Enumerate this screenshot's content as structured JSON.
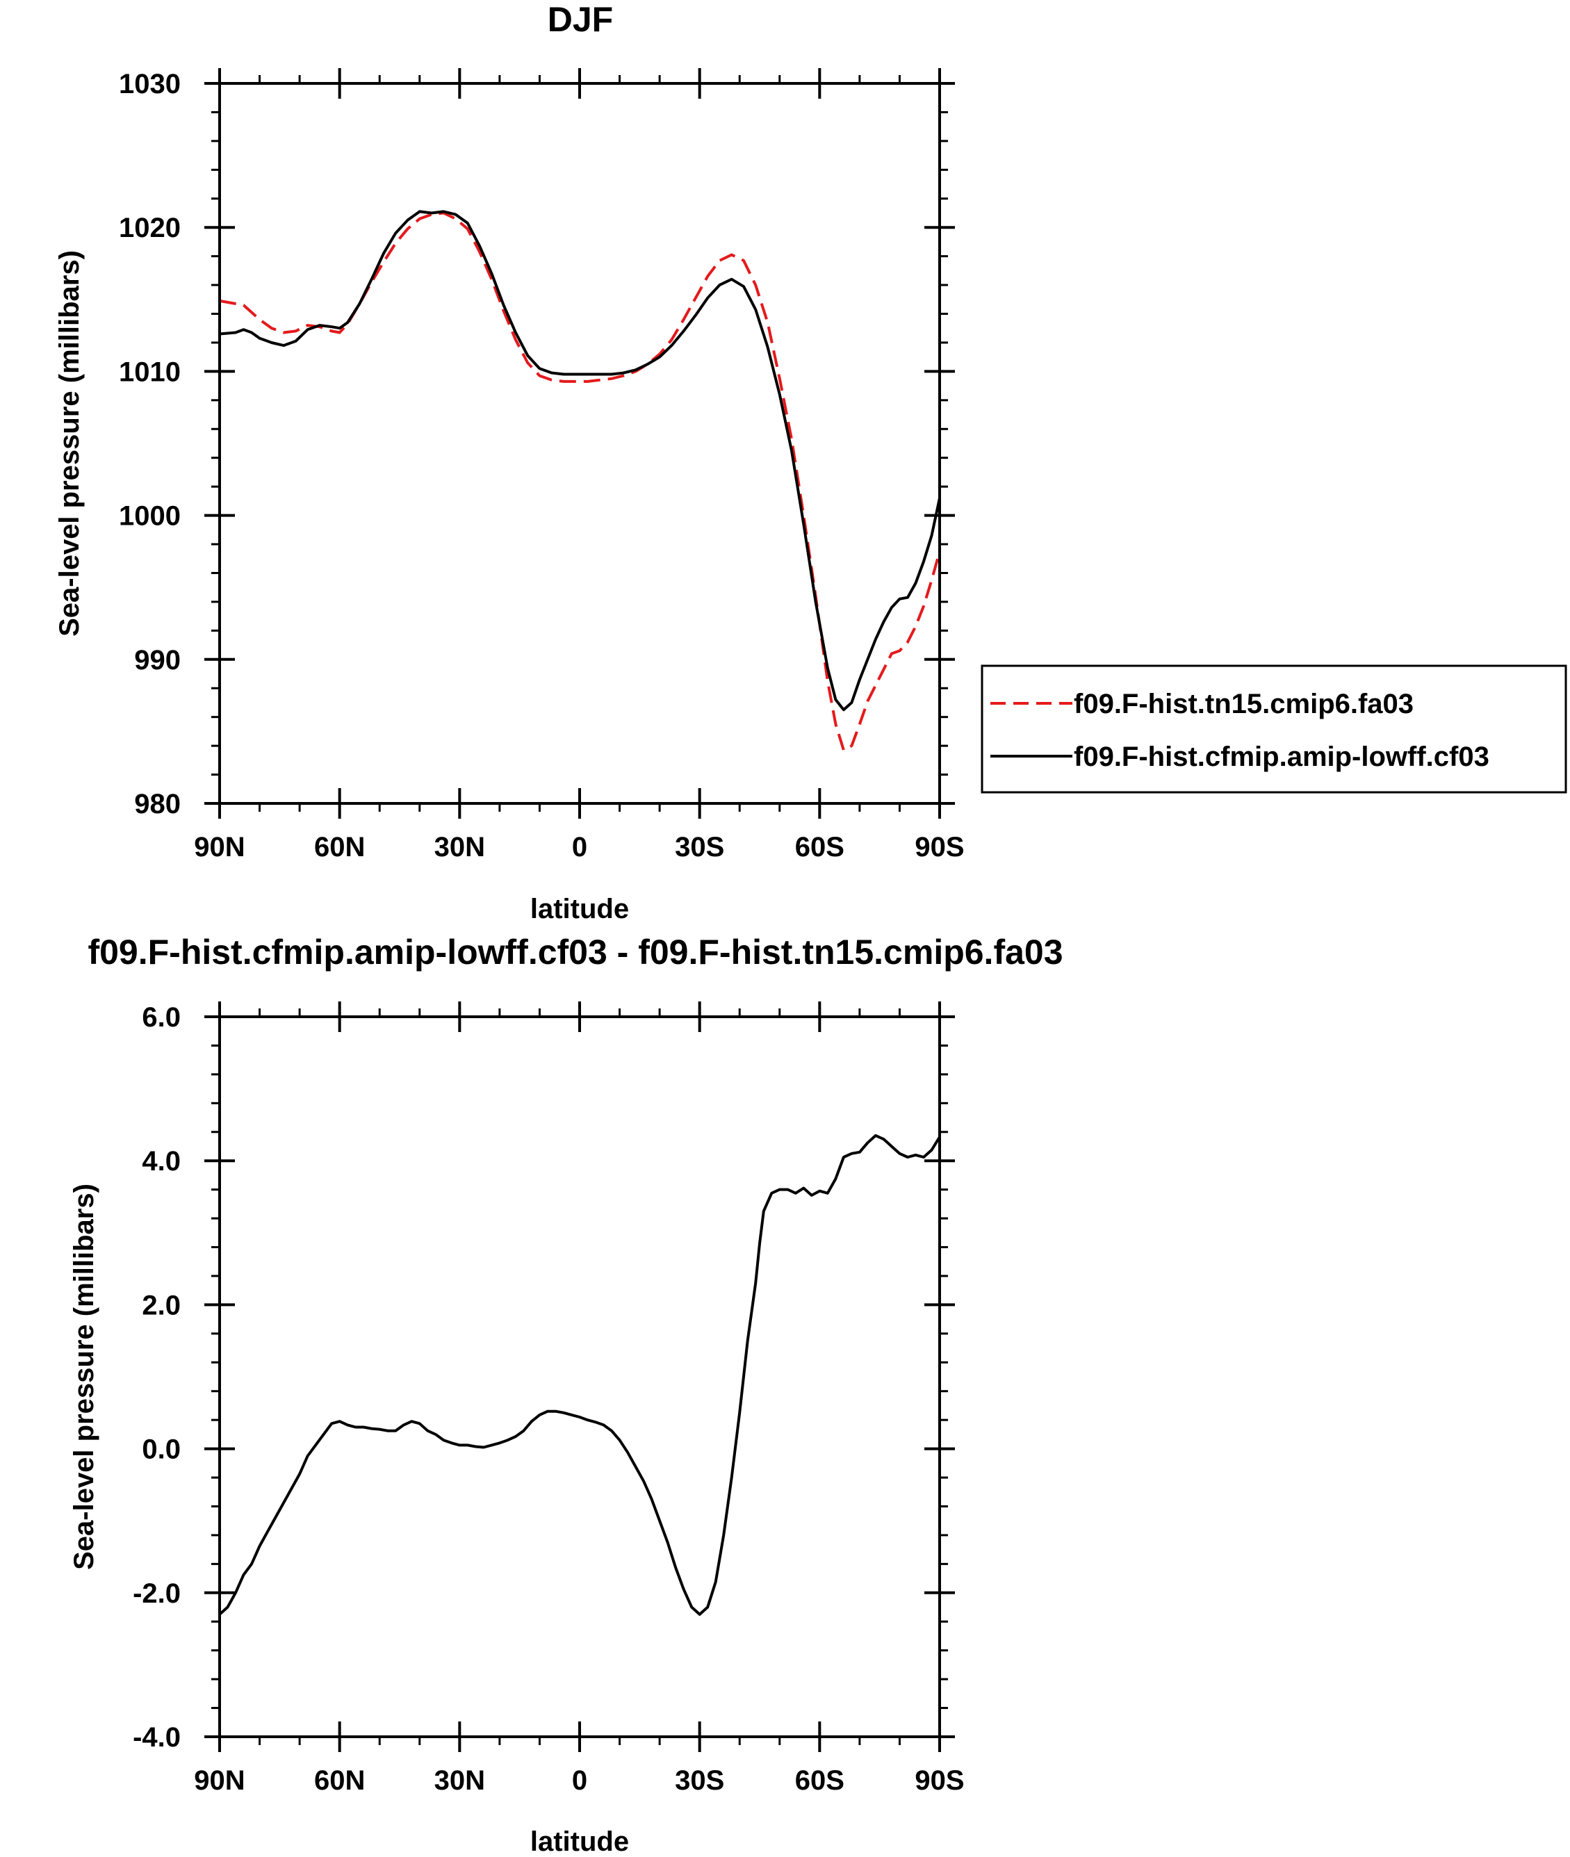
{
  "chart_data": [
    {
      "type": "line",
      "title": "DJF",
      "xlabel": "latitude",
      "ylabel": "Sea-level pressure (millibars)",
      "xlim": [
        90,
        -90
      ],
      "ylim": [
        980,
        1030
      ],
      "x_ticks": [
        90,
        60,
        30,
        0,
        -30,
        -60,
        -90
      ],
      "x_tick_labels": [
        "90N",
        "60N",
        "30N",
        "0",
        "30S",
        "60S",
        "90S"
      ],
      "y_ticks": [
        980,
        990,
        1000,
        1010,
        1020,
        1030
      ],
      "y_tick_labels": [
        "980",
        "990",
        "1000",
        "1010",
        "1020",
        "1030"
      ],
      "legend_position": "right",
      "series": [
        {
          "name": "f09.F-hist.tn15.cmip6.fa03",
          "color": "#e41a1c",
          "dash": "dashed",
          "x": [
            90,
            86,
            84,
            82,
            80,
            77,
            74,
            71,
            68,
            65,
            62,
            60,
            58,
            55,
            52,
            49,
            46,
            43,
            40,
            37,
            34,
            31,
            28,
            25,
            22,
            19,
            16,
            13,
            10,
            7,
            4,
            1,
            -2,
            -5,
            -8,
            -11,
            -14,
            -17,
            -20,
            -23,
            -26,
            -29,
            -32,
            -35,
            -38,
            -41,
            -44,
            -47,
            -50,
            -53,
            -56,
            -59,
            -62,
            -64,
            -66,
            -68,
            -70,
            -72,
            -74,
            -76,
            -78,
            -80,
            -82,
            -84,
            -86,
            -88,
            -90
          ],
          "y": [
            1014.9,
            1014.7,
            1014.6,
            1014.1,
            1013.6,
            1013.0,
            1012.7,
            1012.8,
            1013.2,
            1013.1,
            1012.8,
            1012.7,
            1013.3,
            1014.7,
            1016.2,
            1017.6,
            1018.9,
            1019.9,
            1020.6,
            1020.9,
            1021.0,
            1020.6,
            1019.9,
            1018.3,
            1016.4,
            1014.2,
            1012.2,
            1010.6,
            1009.7,
            1009.4,
            1009.3,
            1009.3,
            1009.3,
            1009.4,
            1009.5,
            1009.7,
            1010.0,
            1010.5,
            1011.2,
            1012.2,
            1013.6,
            1015.1,
            1016.6,
            1017.7,
            1018.1,
            1017.7,
            1016.0,
            1013.4,
            1009.5,
            1005.3,
            1000.0,
            994.4,
            988.5,
            985.5,
            983.7,
            984.0,
            985.5,
            987.1,
            988.2,
            989.3,
            990.4,
            990.6,
            991.2,
            992.3,
            993.7,
            995.5,
            997.5
          ]
        },
        {
          "name": "f09.F-hist.cfmip.amip-lowff.cf03",
          "color": "#000000",
          "dash": "solid",
          "x": [
            90,
            86,
            84,
            82,
            80,
            77,
            74,
            71,
            68,
            65,
            62,
            60,
            58,
            55,
            52,
            49,
            46,
            43,
            40,
            37,
            34,
            31,
            28,
            25,
            22,
            19,
            16,
            13,
            10,
            7,
            4,
            1,
            -2,
            -5,
            -8,
            -11,
            -14,
            -17,
            -20,
            -23,
            -26,
            -29,
            -32,
            -35,
            -38,
            -41,
            -44,
            -47,
            -50,
            -53,
            -56,
            -59,
            -62,
            -64,
            -66,
            -68,
            -70,
            -72,
            -74,
            -76,
            -78,
            -80,
            -82,
            -84,
            -86,
            -88,
            -90
          ],
          "y": [
            1012.6,
            1012.7,
            1012.9,
            1012.7,
            1012.3,
            1012.0,
            1011.8,
            1012.1,
            1012.9,
            1013.2,
            1013.1,
            1013.0,
            1013.4,
            1014.7,
            1016.4,
            1018.2,
            1019.6,
            1020.5,
            1021.1,
            1021.0,
            1021.1,
            1020.9,
            1020.3,
            1018.7,
            1016.8,
            1014.6,
            1012.7,
            1011.1,
            1010.2,
            1009.9,
            1009.8,
            1009.8,
            1009.8,
            1009.8,
            1009.8,
            1009.9,
            1010.1,
            1010.5,
            1011.0,
            1011.8,
            1012.8,
            1013.9,
            1015.1,
            1016.0,
            1016.4,
            1015.9,
            1014.3,
            1011.7,
            1008.4,
            1004.5,
            999.4,
            994.0,
            989.4,
            987.2,
            986.5,
            987.0,
            988.6,
            990.0,
            991.4,
            992.6,
            993.6,
            994.2,
            994.3,
            995.3,
            996.8,
            998.6,
            1001.2
          ]
        }
      ]
    },
    {
      "type": "line",
      "title": "f09.F-hist.cfmip.amip-lowff.cf03 - f09.F-hist.tn15.cmip6.fa03",
      "xlabel": "latitude",
      "ylabel": "Sea-level pressure (millibars)",
      "xlim": [
        90,
        -90
      ],
      "ylim": [
        -4.0,
        6.0
      ],
      "x_ticks": [
        90,
        60,
        30,
        0,
        -30,
        -60,
        -90
      ],
      "x_tick_labels": [
        "90N",
        "60N",
        "30N",
        "0",
        "30S",
        "60S",
        "90S"
      ],
      "y_ticks": [
        -4,
        -2,
        0,
        2,
        4,
        6
      ],
      "y_tick_labels": [
        "-4.0",
        "-2.0",
        "0.0",
        "2.0",
        "4.0",
        "6.0"
      ],
      "series": [
        {
          "color": "#000000",
          "dash": "solid",
          "x": [
            90,
            88,
            86,
            84,
            82,
            80,
            78,
            76,
            74,
            72,
            70,
            68,
            66,
            64,
            62,
            60,
            58,
            56,
            54,
            52,
            50,
            48,
            46,
            44,
            42,
            40,
            38,
            36,
            34,
            32,
            30,
            28,
            26,
            24,
            22,
            20,
            18,
            16,
            14,
            12,
            10,
            8,
            6,
            4,
            2,
            0,
            -2,
            -4,
            -6,
            -8,
            -10,
            -12,
            -14,
            -16,
            -18,
            -20,
            -22,
            -24,
            -26,
            -28,
            -30,
            -32,
            -34,
            -36,
            -38,
            -40,
            -42,
            -44,
            -45,
            -46,
            -48,
            -50,
            -52,
            -54,
            -56,
            -58,
            -60,
            -62,
            -64,
            -66,
            -68,
            -70,
            -72,
            -74,
            -76,
            -77,
            -78,
            -79,
            -80,
            -82,
            -84,
            -86,
            -88,
            -90
          ],
          "y": [
            -2.3,
            -2.2,
            -2.0,
            -1.75,
            -1.6,
            -1.35,
            -1.15,
            -0.95,
            -0.75,
            -0.55,
            -0.35,
            -0.1,
            0.05,
            0.2,
            0.35,
            0.38,
            0.33,
            0.3,
            0.3,
            0.28,
            0.27,
            0.25,
            0.25,
            0.33,
            0.38,
            0.35,
            0.25,
            0.2,
            0.12,
            0.08,
            0.05,
            0.05,
            0.03,
            0.02,
            0.05,
            0.08,
            0.12,
            0.17,
            0.25,
            0.38,
            0.47,
            0.52,
            0.52,
            0.5,
            0.47,
            0.44,
            0.4,
            0.37,
            0.33,
            0.25,
            0.12,
            -0.05,
            -0.25,
            -0.45,
            -0.7,
            -1.0,
            -1.3,
            -1.65,
            -1.95,
            -2.2,
            -2.3,
            -2.2,
            -1.85,
            -1.2,
            -0.4,
            0.5,
            1.5,
            2.3,
            2.85,
            3.3,
            3.55,
            3.6,
            3.6,
            3.55,
            3.62,
            3.52,
            3.58,
            3.55,
            3.75,
            4.05,
            4.1,
            4.12,
            4.25,
            4.35,
            4.3,
            4.25,
            4.2,
            4.15,
            4.1,
            4.05,
            4.08,
            4.05,
            4.15,
            4.33
          ]
        }
      ]
    }
  ]
}
